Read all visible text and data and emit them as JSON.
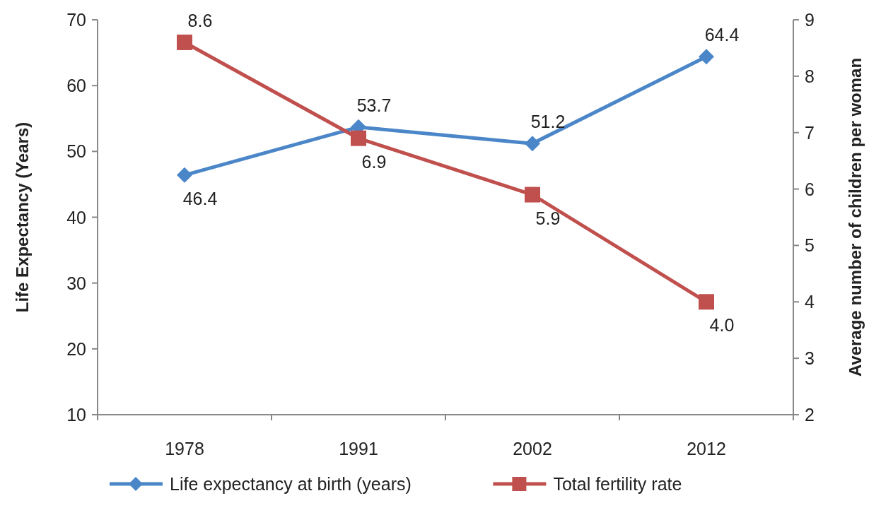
{
  "chart_data": {
    "type": "line",
    "ylabel": "Life Expectancy (Years)",
    "y2label": "Average number of children per woman",
    "categories": [
      "1978",
      "1991",
      "2002",
      "2012"
    ],
    "series": [
      {
        "name": "Life expectancy at birth (years)",
        "color": "#4a86c8",
        "values": [
          46.4,
          53.7,
          51.2,
          64.4
        ],
        "value_labels": [
          "46.4",
          "53.7",
          "51.2",
          "64.4"
        ],
        "marker": "diamond"
      },
      {
        "name": "Total fertility rate",
        "color": "#c0504d",
        "values": [
          8.6,
          6.9,
          5.9,
          4.0
        ],
        "value_labels": [
          "8.6",
          "6.9",
          "5.9",
          "4.0"
        ],
        "axis": "y2",
        "marker": "square"
      }
    ],
    "ylim": [
      10,
      70
    ],
    "yticks": [
      10,
      20,
      30,
      40,
      50,
      60,
      70
    ],
    "y2lim": [
      2,
      9
    ],
    "y2ticks": [
      2,
      3,
      4,
      5,
      6,
      7,
      8,
      9
    ],
    "grid": false,
    "legend": "bottom",
    "line_style": "solid"
  }
}
